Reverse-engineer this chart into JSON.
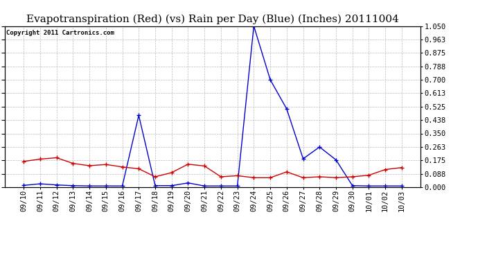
{
  "title": "Evapotranspiration (Red) (vs) Rain per Day (Blue) (Inches) 20111004",
  "copyright": "Copyright 2011 Cartronics.com",
  "x_labels": [
    "09/10",
    "09/11",
    "09/12",
    "09/13",
    "09/14",
    "09/15",
    "09/16",
    "09/17",
    "09/18",
    "09/19",
    "09/20",
    "09/21",
    "09/22",
    "09/23",
    "09/24",
    "09/25",
    "09/26",
    "09/27",
    "09/28",
    "09/29",
    "09/30",
    "10/01",
    "10/02",
    "10/03"
  ],
  "red_data": [
    0.168,
    0.183,
    0.192,
    0.155,
    0.14,
    0.148,
    0.132,
    0.12,
    0.068,
    0.095,
    0.15,
    0.138,
    0.068,
    0.075,
    0.062,
    0.062,
    0.1,
    0.062,
    0.068,
    0.062,
    0.068,
    0.078,
    0.115,
    0.128
  ],
  "blue_data": [
    0.012,
    0.022,
    0.015,
    0.01,
    0.008,
    0.008,
    0.008,
    0.468,
    0.01,
    0.01,
    0.028,
    0.008,
    0.008,
    0.008,
    1.05,
    0.7,
    0.51,
    0.185,
    0.262,
    0.178,
    0.01,
    0.008,
    0.008,
    0.008
  ],
  "ylim": [
    0.0,
    1.05
  ],
  "yticks": [
    0.0,
    0.088,
    0.175,
    0.263,
    0.35,
    0.438,
    0.525,
    0.613,
    0.7,
    0.788,
    0.875,
    0.963,
    1.05
  ],
  "title_fontsize": 11,
  "copyright_fontsize": 6.5,
  "tick_fontsize": 7.5,
  "background_color": "#ffffff",
  "grid_color": "#bbbbbb",
  "red_color": "#cc0000",
  "blue_color": "#0000cc",
  "line_width": 1.0,
  "marker_size": 4
}
